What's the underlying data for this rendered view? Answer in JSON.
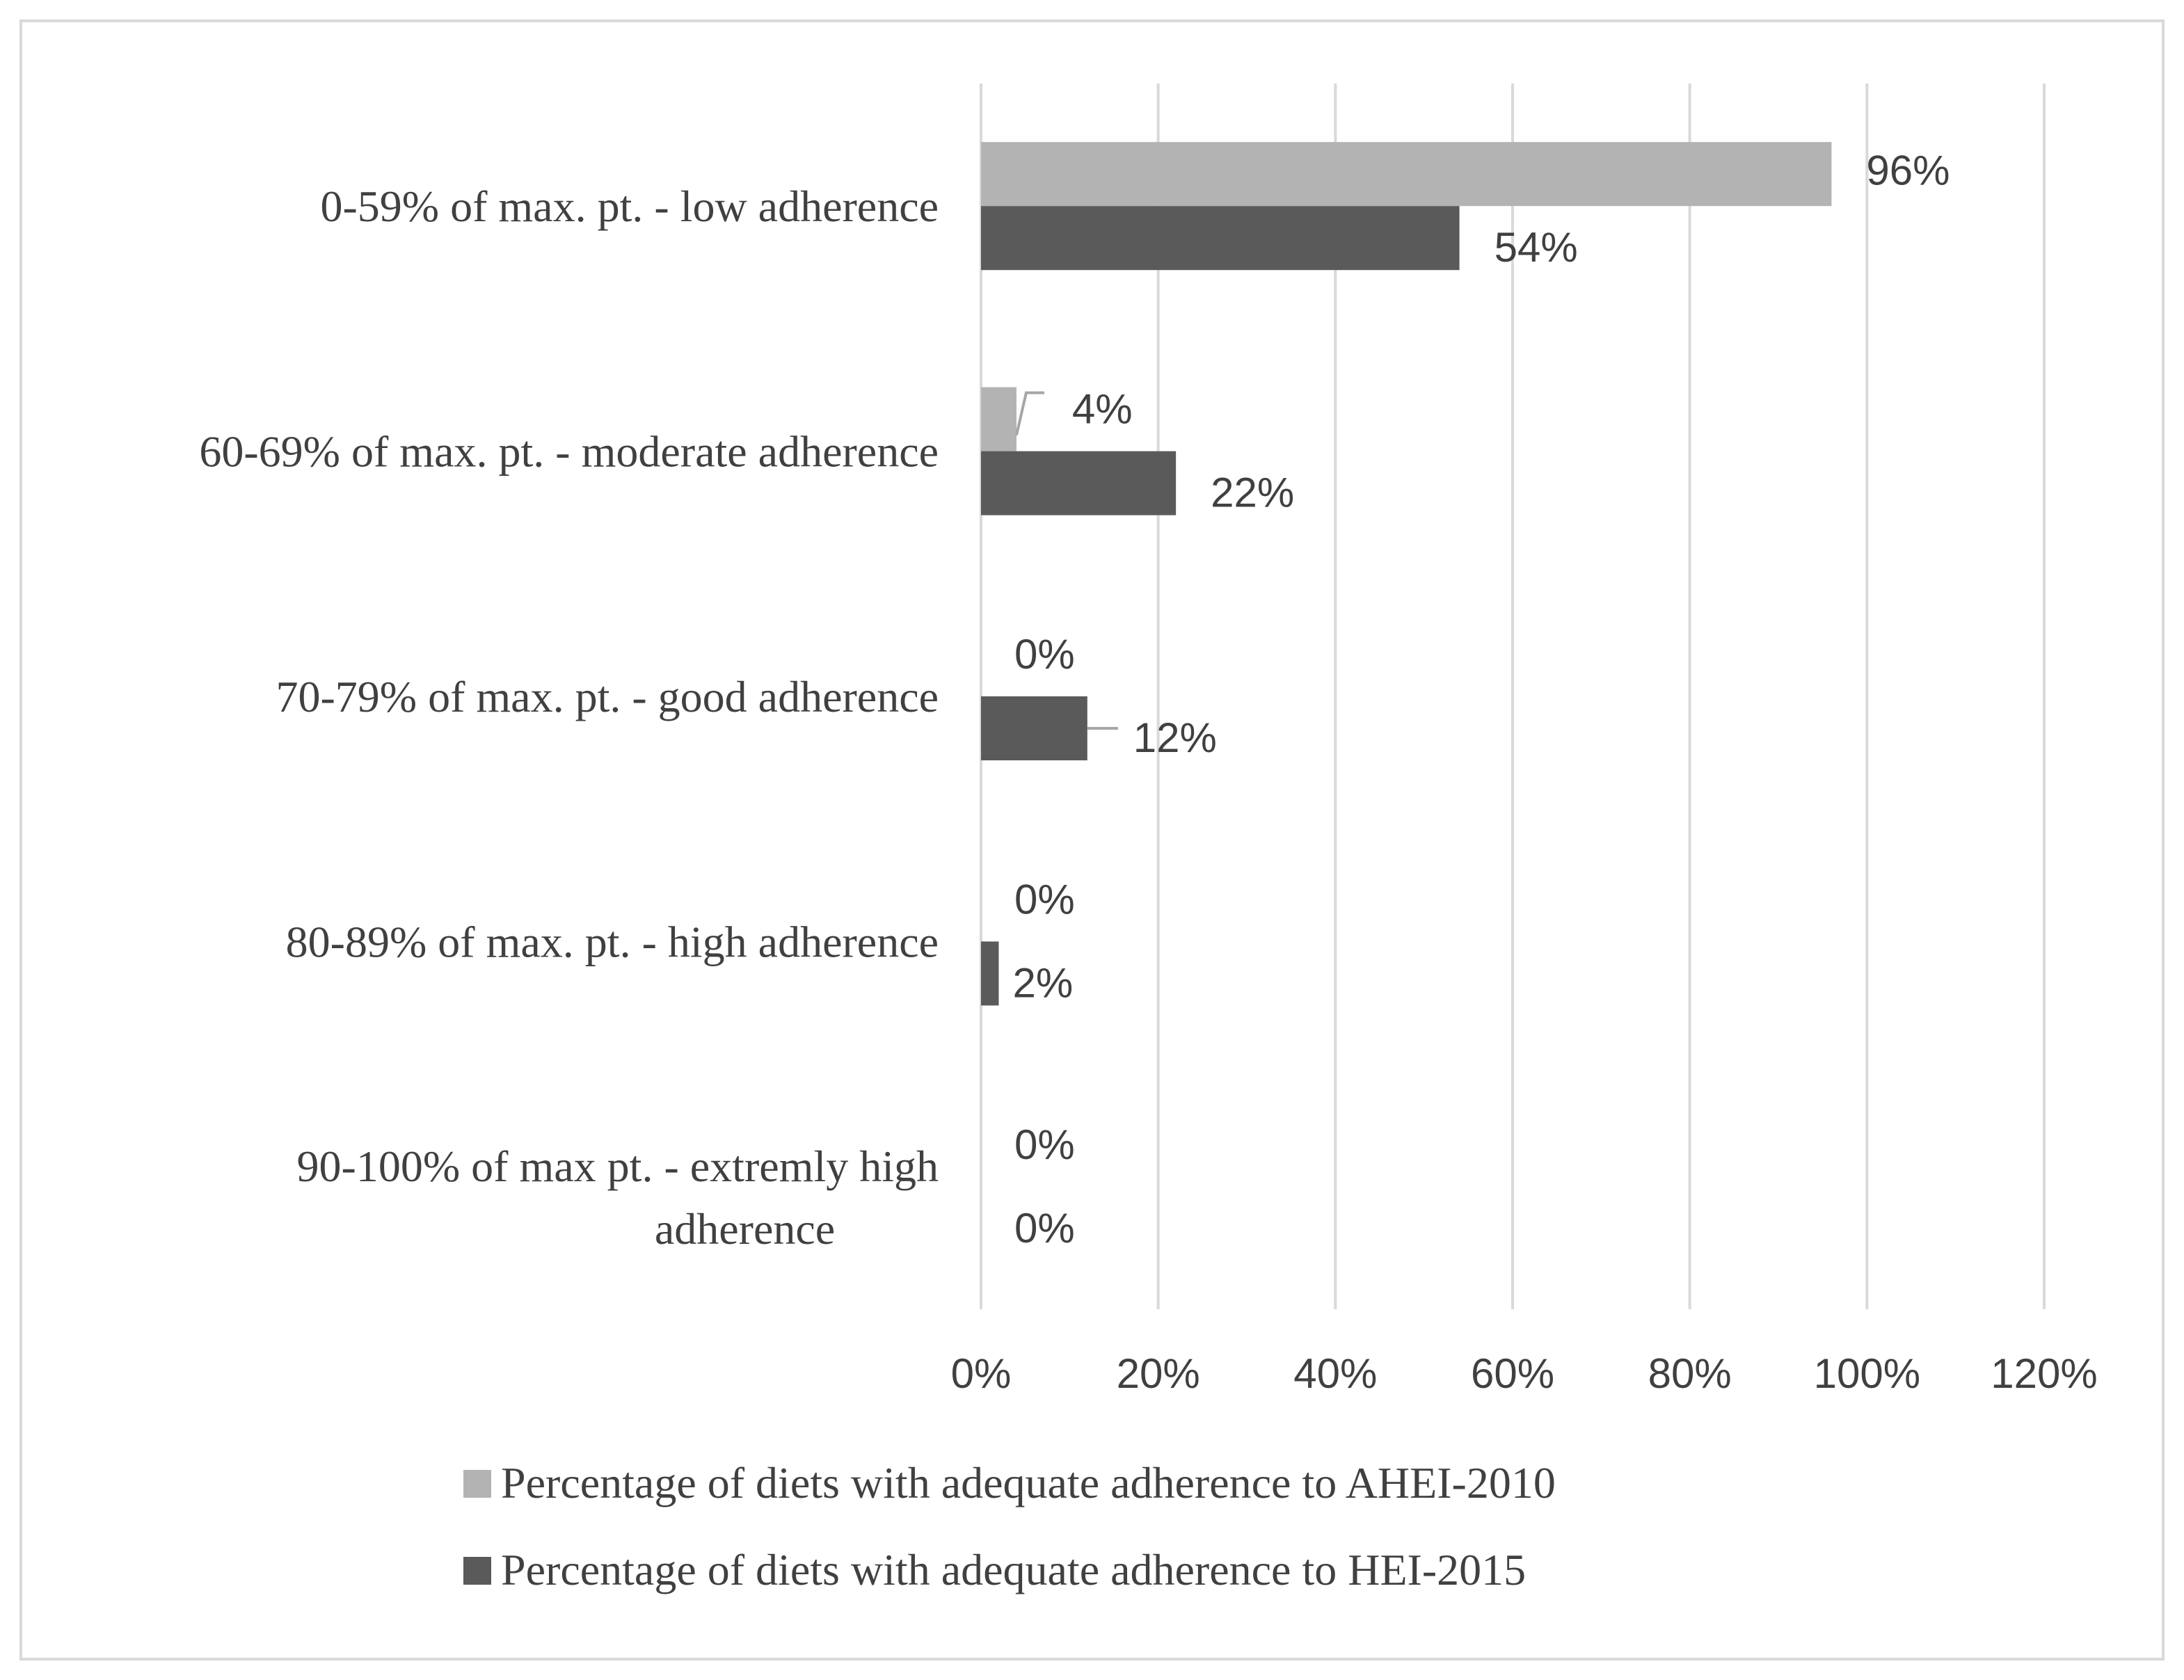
{
  "chart_data": {
    "type": "bar",
    "orientation": "horizontal",
    "categories": [
      "0-59% of max. pt. -  low adherence",
      "60-69% of max. pt. - moderate adherence",
      "70-79% of max. pt. -  good adherence",
      "80-89% of max. pt. - high adherence",
      "90-100% of max pt. - extremly high adherence"
    ],
    "series": [
      {
        "name": "Percentage of diets with adequate adherence to AHEI-2010",
        "color": "#b3b3b3",
        "values": [
          96,
          4,
          0,
          0,
          0
        ],
        "labels": [
          "96%",
          "4%",
          "0%",
          "0%",
          "0%"
        ]
      },
      {
        "name": "Percentage of diets with adequate adherence to  HEI-2015",
        "color": "#5a5a5a",
        "values": [
          54,
          22,
          12,
          2,
          0
        ],
        "labels": [
          "54%",
          "22%",
          "12%",
          "2%",
          "0%"
        ]
      }
    ],
    "xlim": [
      0,
      120
    ],
    "xticks": [
      "0%",
      "20%",
      "40%",
      "60%",
      "80%",
      "100%",
      "120%"
    ],
    "grid": "vertical",
    "legend_position": "bottom",
    "title": "",
    "xlabel": "",
    "ylabel": ""
  }
}
